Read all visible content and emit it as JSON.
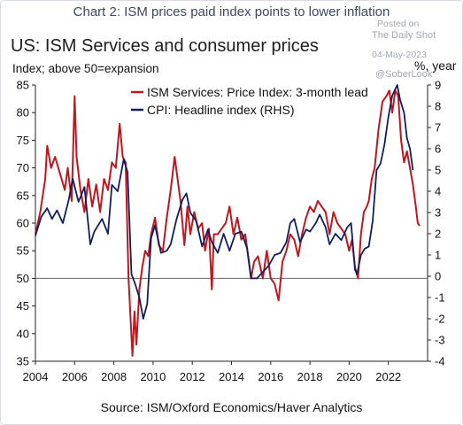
{
  "header_title": "Chart 2: ISM prices paid index points to lower inflation",
  "watermark": {
    "posted": "Posted on",
    "site": "The Daily Shot",
    "date": "04-May-2023",
    "handle": "@SoberLook"
  },
  "source": "Source: ISM/Oxford Economics/Haver Analytics",
  "chart_data": {
    "type": "line",
    "title": "US: ISM Services and consumer prices",
    "subtitle": "Index; above 50=expansion",
    "y2label": "%, year",
    "xlim": [
      2004.0,
      2024.0
    ],
    "ylim": [
      35,
      85
    ],
    "y2lim": [
      -4,
      9
    ],
    "x_ticks": [
      "2004",
      "2006",
      "2008",
      "2010",
      "2012",
      "2014",
      "2016",
      "2018",
      "2020",
      "2022"
    ],
    "y_ticks": [
      35,
      40,
      45,
      50,
      55,
      60,
      65,
      70,
      75,
      80,
      85
    ],
    "y2_ticks": [
      -4,
      -3,
      -2,
      -1,
      0,
      1,
      2,
      3,
      4,
      5,
      6,
      7,
      8,
      9
    ],
    "reference_line": 50,
    "legend_position": "top-center",
    "colors": {
      "series1": "#c0161e",
      "series2": "#0f1f5c",
      "reference": "#666666"
    },
    "series": [
      {
        "name": "ISM Services: Price Index: 3-month lead",
        "axis": "left",
        "points": [
          [
            2004.0,
            58
          ],
          [
            2004.25,
            62
          ],
          [
            2004.5,
            68
          ],
          [
            2004.6,
            74
          ],
          [
            2004.8,
            70
          ],
          [
            2005.0,
            72
          ],
          [
            2005.25,
            69
          ],
          [
            2005.5,
            66
          ],
          [
            2005.65,
            70
          ],
          [
            2005.85,
            64
          ],
          [
            2006.0,
            83
          ],
          [
            2006.1,
            72
          ],
          [
            2006.3,
            66
          ],
          [
            2006.5,
            62
          ],
          [
            2006.7,
            68
          ],
          [
            2006.9,
            63
          ],
          [
            2007.1,
            67
          ],
          [
            2007.3,
            62
          ],
          [
            2007.5,
            68
          ],
          [
            2007.7,
            66
          ],
          [
            2007.9,
            71
          ],
          [
            2008.1,
            70
          ],
          [
            2008.3,
            78
          ],
          [
            2008.45,
            72
          ],
          [
            2008.6,
            71
          ],
          [
            2008.75,
            50
          ],
          [
            2008.85,
            43
          ],
          [
            2008.95,
            36
          ],
          [
            2009.05,
            44
          ],
          [
            2009.15,
            38
          ],
          [
            2009.3,
            48
          ],
          [
            2009.45,
            52
          ],
          [
            2009.6,
            55
          ],
          [
            2009.75,
            54
          ],
          [
            2009.9,
            58
          ],
          [
            2010.1,
            61
          ],
          [
            2010.3,
            56
          ],
          [
            2010.5,
            55
          ],
          [
            2010.7,
            61
          ],
          [
            2010.9,
            66
          ],
          [
            2011.1,
            72
          ],
          [
            2011.25,
            68
          ],
          [
            2011.4,
            64
          ],
          [
            2011.6,
            56
          ],
          [
            2011.75,
            63
          ],
          [
            2011.9,
            58
          ],
          [
            2012.1,
            62
          ],
          [
            2012.3,
            59
          ],
          [
            2012.5,
            60
          ],
          [
            2012.65,
            55
          ],
          [
            2012.85,
            59
          ],
          [
            2013.0,
            48
          ],
          [
            2013.1,
            58
          ],
          [
            2013.3,
            58
          ],
          [
            2013.5,
            59
          ],
          [
            2013.7,
            60
          ],
          [
            2013.9,
            63
          ],
          [
            2014.1,
            58
          ],
          [
            2014.3,
            61
          ],
          [
            2014.5,
            57
          ],
          [
            2014.7,
            58
          ],
          [
            2014.85,
            54
          ],
          [
            2015.0,
            50
          ],
          [
            2015.15,
            53
          ],
          [
            2015.35,
            54
          ],
          [
            2015.6,
            50
          ],
          [
            2015.8,
            55
          ],
          [
            2016.0,
            50
          ],
          [
            2016.2,
            49
          ],
          [
            2016.4,
            46
          ],
          [
            2016.6,
            53
          ],
          [
            2016.8,
            55
          ],
          [
            2017.0,
            58
          ],
          [
            2017.2,
            57
          ],
          [
            2017.4,
            54
          ],
          [
            2017.6,
            58
          ],
          [
            2017.8,
            61
          ],
          [
            2018.0,
            63
          ],
          [
            2018.2,
            62
          ],
          [
            2018.4,
            64
          ],
          [
            2018.6,
            63
          ],
          [
            2018.8,
            62
          ],
          [
            2019.0,
            58
          ],
          [
            2019.2,
            62
          ],
          [
            2019.4,
            60
          ],
          [
            2019.6,
            59
          ],
          [
            2019.8,
            58
          ],
          [
            2020.0,
            55
          ],
          [
            2020.15,
            57
          ],
          [
            2020.3,
            52
          ],
          [
            2020.45,
            50
          ],
          [
            2020.6,
            58
          ],
          [
            2020.75,
            62
          ],
          [
            2020.9,
            63
          ],
          [
            2021.0,
            64
          ],
          [
            2021.15,
            68
          ],
          [
            2021.3,
            70
          ],
          [
            2021.5,
            77
          ],
          [
            2021.7,
            82
          ],
          [
            2021.9,
            83
          ],
          [
            2022.05,
            84
          ],
          [
            2022.2,
            80
          ],
          [
            2022.35,
            84
          ],
          [
            2022.5,
            83
          ],
          [
            2022.65,
            75
          ],
          [
            2022.8,
            71
          ],
          [
            2022.95,
            73
          ],
          [
            2023.1,
            70
          ],
          [
            2023.25,
            67
          ],
          [
            2023.4,
            63
          ],
          [
            2023.5,
            60
          ],
          [
            2023.6,
            59.5
          ]
        ]
      },
      {
        "name": "CPI: Headline index (RHS)",
        "axis": "right",
        "points": [
          [
            2004.0,
            1.9
          ],
          [
            2004.3,
            2.8
          ],
          [
            2004.6,
            3.2
          ],
          [
            2004.85,
            2.7
          ],
          [
            2005.1,
            3.1
          ],
          [
            2005.4,
            2.5
          ],
          [
            2005.7,
            3.6
          ],
          [
            2005.9,
            4.6
          ],
          [
            2006.2,
            3.5
          ],
          [
            2006.5,
            4.2
          ],
          [
            2006.8,
            1.5
          ],
          [
            2007.0,
            2.1
          ],
          [
            2007.4,
            2.7
          ],
          [
            2007.7,
            2.0
          ],
          [
            2007.9,
            4.3
          ],
          [
            2008.2,
            4.0
          ],
          [
            2008.5,
            5.5
          ],
          [
            2008.7,
            4.9
          ],
          [
            2008.9,
            0.1
          ],
          [
            2009.1,
            -0.4
          ],
          [
            2009.3,
            -1.0
          ],
          [
            2009.5,
            -2.0
          ],
          [
            2009.7,
            -1.3
          ],
          [
            2009.9,
            1.8
          ],
          [
            2010.1,
            2.4
          ],
          [
            2010.4,
            1.1
          ],
          [
            2010.7,
            1.2
          ],
          [
            2010.9,
            1.5
          ],
          [
            2011.2,
            2.7
          ],
          [
            2011.5,
            3.6
          ],
          [
            2011.7,
            3.9
          ],
          [
            2011.9,
            3.0
          ],
          [
            2012.2,
            2.6
          ],
          [
            2012.5,
            1.4
          ],
          [
            2012.8,
            2.2
          ],
          [
            2013.0,
            1.6
          ],
          [
            2013.3,
            1.1
          ],
          [
            2013.6,
            2.0
          ],
          [
            2013.9,
            1.2
          ],
          [
            2014.2,
            2.0
          ],
          [
            2014.5,
            2.1
          ],
          [
            2014.8,
            1.3
          ],
          [
            2015.0,
            -0.1
          ],
          [
            2015.3,
            -0.1
          ],
          [
            2015.6,
            0.2
          ],
          [
            2015.9,
            0.5
          ],
          [
            2016.2,
            1.0
          ],
          [
            2016.5,
            1.1
          ],
          [
            2016.8,
            1.6
          ],
          [
            2017.0,
            2.5
          ],
          [
            2017.2,
            2.7
          ],
          [
            2017.5,
            1.6
          ],
          [
            2017.8,
            2.2
          ],
          [
            2018.0,
            2.1
          ],
          [
            2018.3,
            2.5
          ],
          [
            2018.5,
            2.9
          ],
          [
            2018.8,
            2.3
          ],
          [
            2019.0,
            1.5
          ],
          [
            2019.3,
            2.0
          ],
          [
            2019.6,
            1.7
          ],
          [
            2019.9,
            2.3
          ],
          [
            2020.1,
            2.5
          ],
          [
            2020.3,
            0.3
          ],
          [
            2020.4,
            0.1
          ],
          [
            2020.6,
            1.0
          ],
          [
            2020.8,
            1.3
          ],
          [
            2021.0,
            1.4
          ],
          [
            2021.2,
            2.6
          ],
          [
            2021.4,
            5.0
          ],
          [
            2021.6,
            5.3
          ],
          [
            2021.8,
            6.2
          ],
          [
            2022.0,
            7.5
          ],
          [
            2022.2,
            8.5
          ],
          [
            2022.45,
            9.0
          ],
          [
            2022.6,
            8.3
          ],
          [
            2022.8,
            7.7
          ],
          [
            2022.95,
            6.5
          ],
          [
            2023.1,
            6.0
          ],
          [
            2023.25,
            5.0
          ]
        ]
      }
    ]
  }
}
